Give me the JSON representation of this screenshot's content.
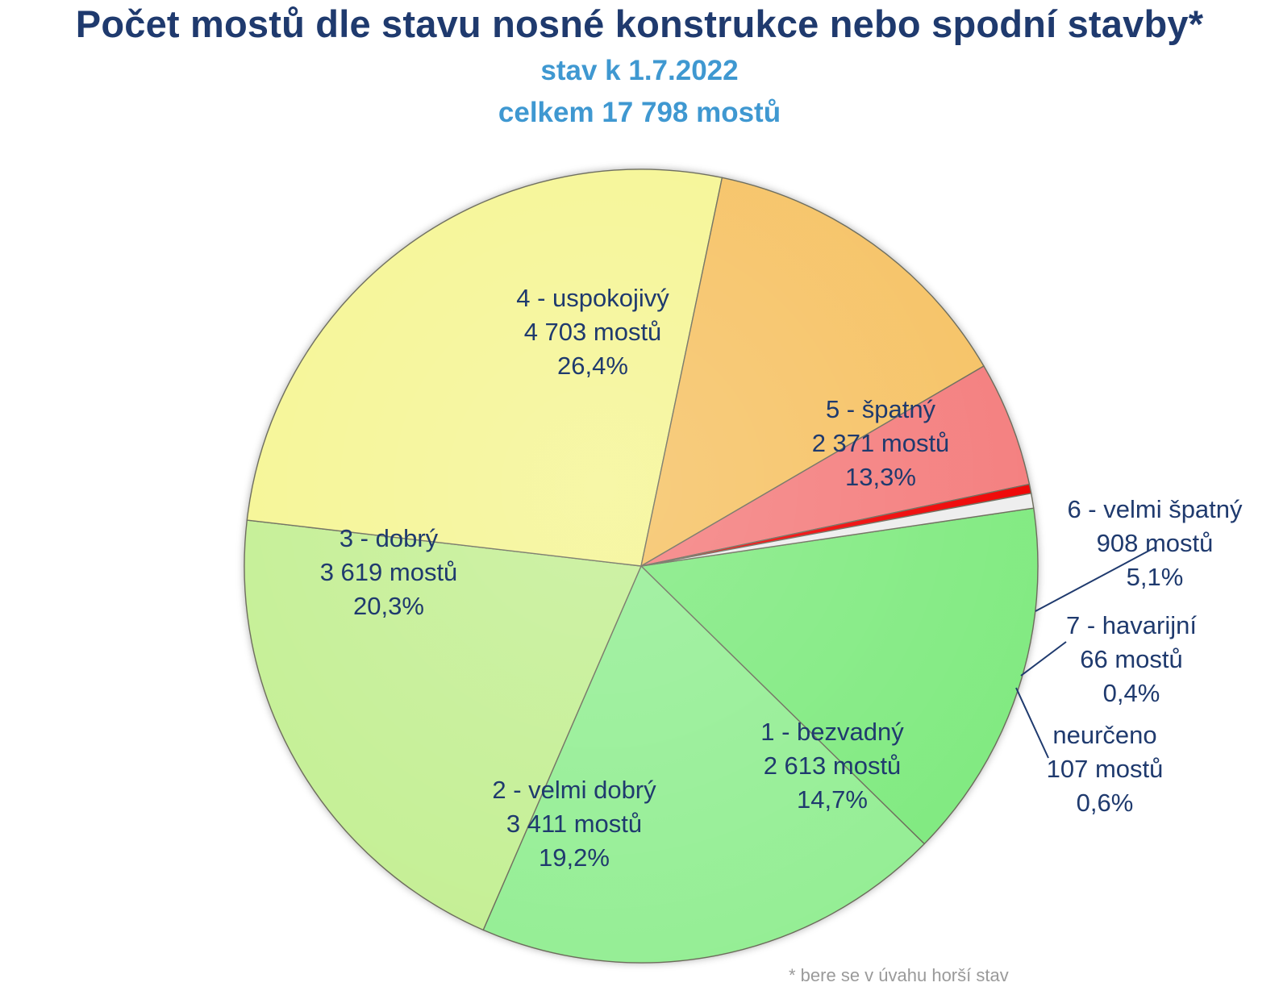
{
  "chart_data": {
    "type": "pie",
    "title": "Počet mostů dle stavu nosné konstrukce nebo spodní stavby*",
    "subtitle_lines": [
      "stav k 1.7.2022",
      "celkem 17 798 mostů"
    ],
    "total": 17798,
    "slices": [
      {
        "label": "1 - bezvadný",
        "count_text": "2 613 mostů",
        "pct_text": "14,7%",
        "value": 2613,
        "color": "#80ea80"
      },
      {
        "label": "2 - velmi dobrý",
        "count_text": "3 411 mostů",
        "pct_text": "19,2%",
        "value": 3411,
        "color": "#94ee94"
      },
      {
        "label": "3 - dobrý",
        "count_text": "3 619 mostů",
        "pct_text": "20,3%",
        "value": 3619,
        "color": "#c4ef94"
      },
      {
        "label": "4 - uspokojivý",
        "count_text": "4 703 mostů",
        "pct_text": "26,4%",
        "value": 4703,
        "color": "#f5f594"
      },
      {
        "label": "5 - špatný",
        "count_text": "2 371 mostů",
        "pct_text": "13,3%",
        "value": 2371,
        "color": "#f6c264"
      },
      {
        "label": "6 - velmi špatný",
        "count_text": "908 mostů",
        "pct_text": "5,1%",
        "value": 908,
        "color": "#f47d7d"
      },
      {
        "label": "7 - havarijní",
        "count_text": "66 mostů",
        "pct_text": "0,4%",
        "value": 66,
        "color": "#ee0000"
      },
      {
        "label": "neurčeno",
        "count_text": "107 mostů",
        "pct_text": "0,6%",
        "value": 107,
        "color": "#ededed"
      }
    ],
    "footnote": "* bere se v úvahu horší stav",
    "colors": {
      "title": "#1f3a6e",
      "subtitle": "#3f98d1",
      "label_text": "#1f3a6e",
      "leader_line": "#1f3a6e"
    }
  }
}
